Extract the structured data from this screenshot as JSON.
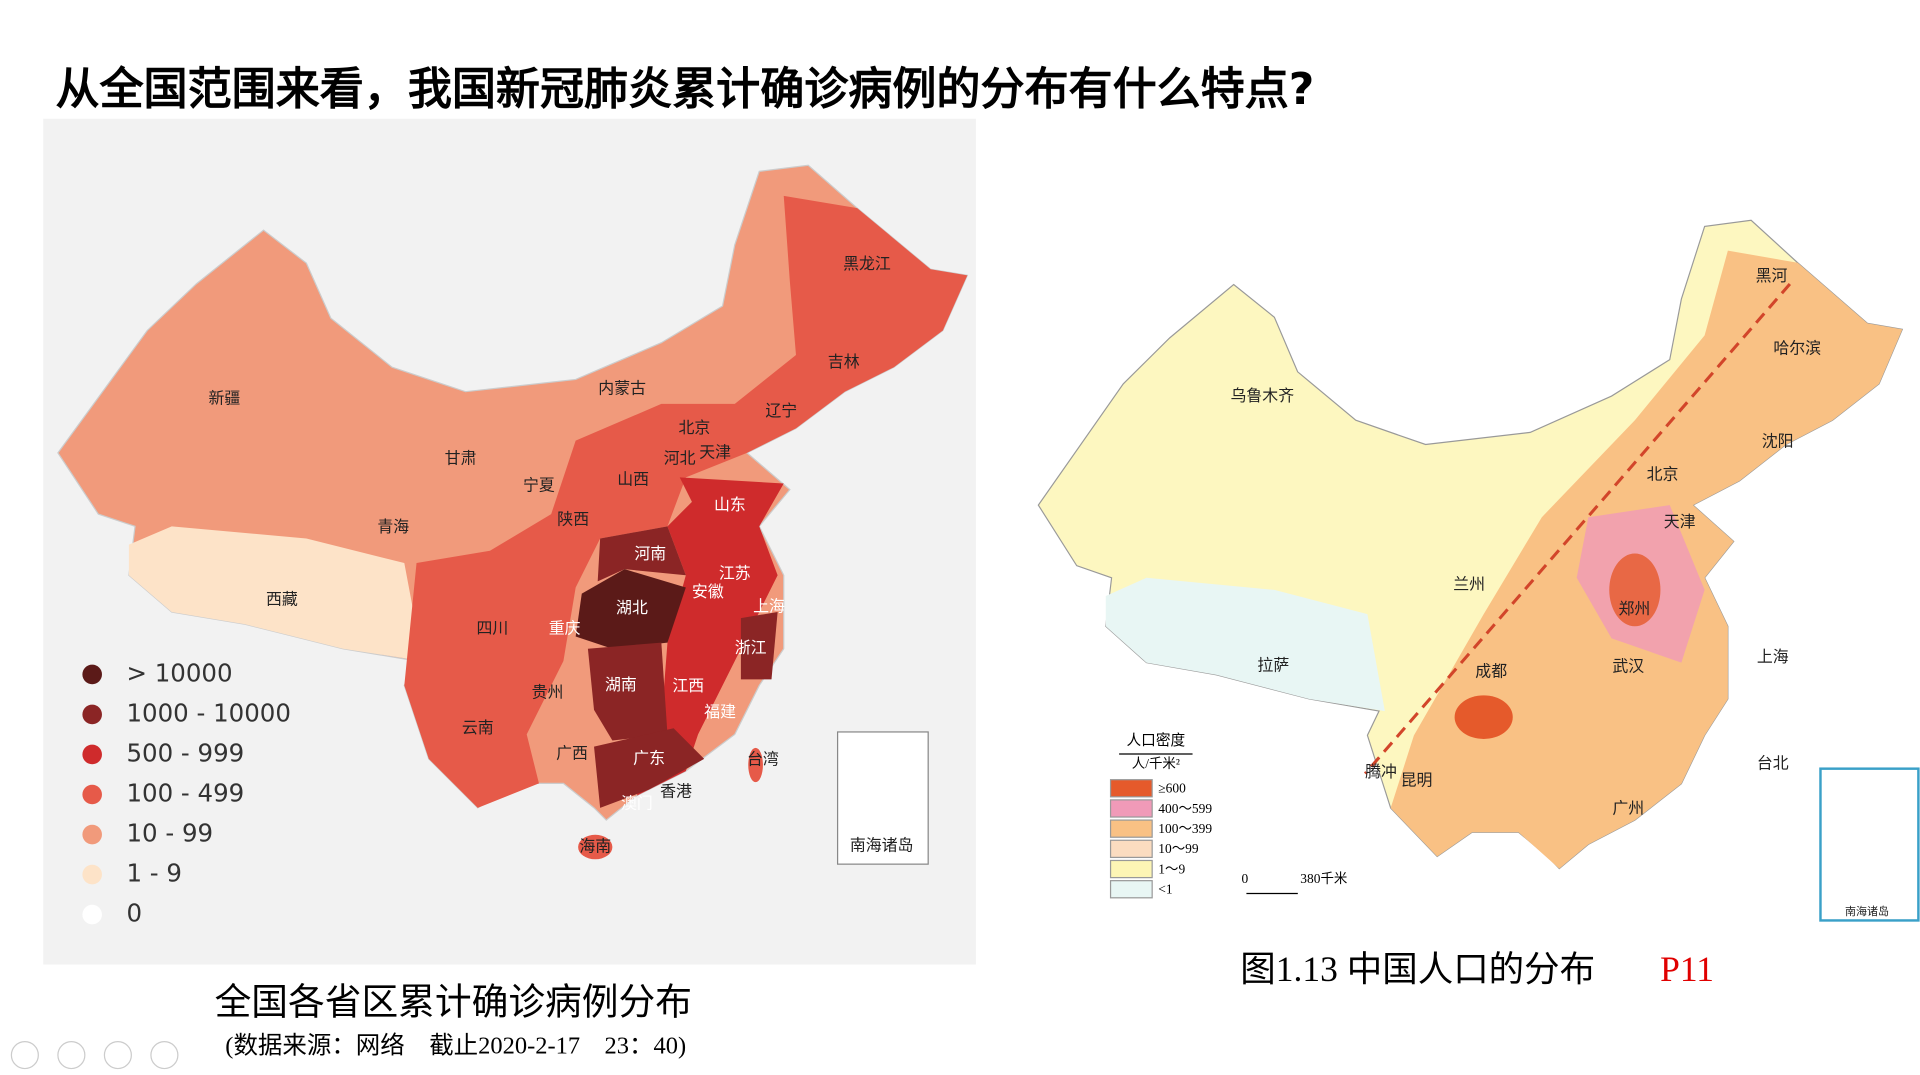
{
  "title": "从全国范围来看，我国新冠肺炎累计确诊病例的分布有什么特点?",
  "left_map": {
    "labels": [
      "新疆",
      "西藏",
      "青海",
      "甘肃",
      "宁夏",
      "内蒙古",
      "陕西",
      "山西",
      "河北",
      "北京",
      "天津",
      "辽宁",
      "吉林",
      "黑龙江",
      "山东",
      "河南",
      "江苏",
      "安徽",
      "上海",
      "湖北",
      "重庆",
      "四川",
      "浙江",
      "湖南",
      "江西",
      "贵州",
      "云南",
      "福建",
      "广西",
      "广东",
      "台湾",
      "香港",
      "澳门",
      "海南",
      "南海诸岛"
    ],
    "legend": [
      {
        "label": "> 10000",
        "color": "#5b1a18"
      },
      {
        "label": "1000 - 10000",
        "color": "#8b2525"
      },
      {
        "label": "500 - 999",
        "color": "#cf2b2c"
      },
      {
        "label": "100 - 499",
        "color": "#e65a49"
      },
      {
        "label": "10 - 99",
        "color": "#f19a7b"
      },
      {
        "label": "1 - 9",
        "color": "#fde3c8"
      },
      {
        "label": "0",
        "color": "#ffffff"
      }
    ],
    "caption": "全国各省区累计确诊病例分布",
    "source": "(数据来源：网络　截止2020-2-17　23：40)"
  },
  "right_map": {
    "labels": [
      "黑河",
      "哈尔滨",
      "乌鲁木齐",
      "沈阳",
      "北京",
      "天津",
      "兰州",
      "郑州",
      "拉萨",
      "成都",
      "武汉",
      "上海",
      "腾冲",
      "昆明",
      "台北",
      "广州",
      "南海诸岛"
    ],
    "legend_title": "人口密度",
    "legend_unit": "人/千米²",
    "legend": [
      {
        "label": "≥600",
        "color": "#e55a2b"
      },
      {
        "label": "400～599",
        "color": "#f09ab8"
      },
      {
        "label": "100～399",
        "color": "#f9c184"
      },
      {
        "label": "10～99",
        "color": "#fbdcc0"
      },
      {
        "label": "1～9",
        "color": "#fdf5b5"
      },
      {
        "label": "<1",
        "color": "#e8f6f4"
      }
    ],
    "scale": [
      "0",
      "380千米"
    ],
    "caption": "图1.13 中国人口的分布",
    "page_ref": "P11"
  }
}
